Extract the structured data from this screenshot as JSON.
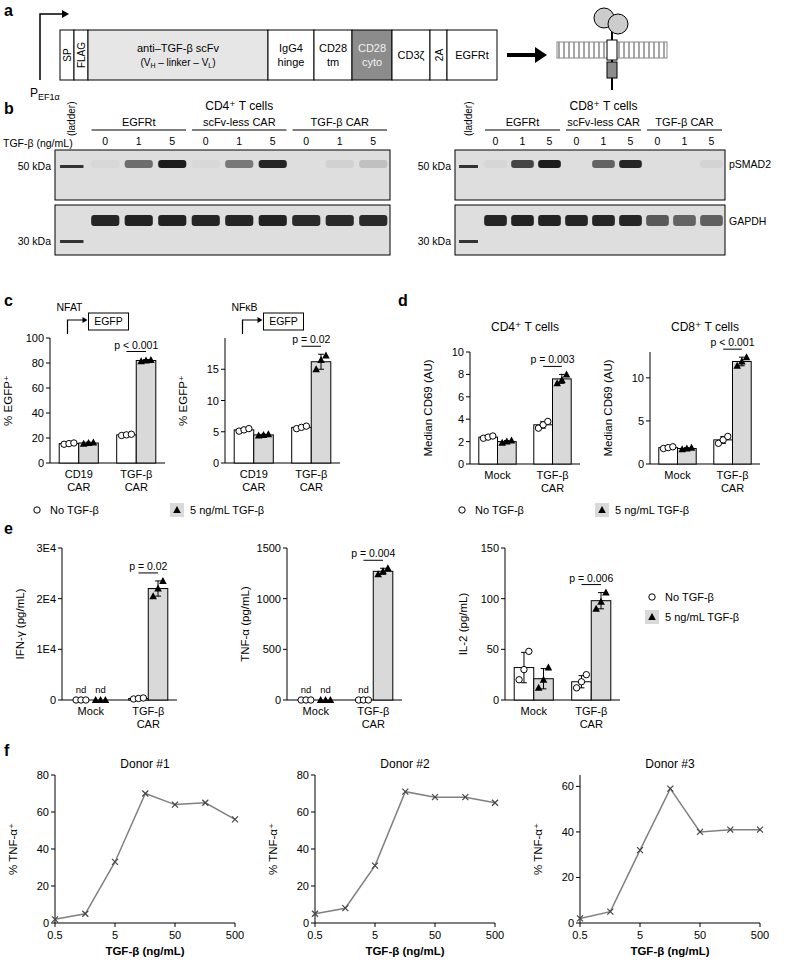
{
  "panel_labels": [
    "a",
    "b",
    "c",
    "d",
    "e",
    "f"
  ],
  "construct": {
    "promoter_parts": [
      "P",
      "EF1α"
    ],
    "segments": [
      {
        "lines": [
          "SP"
        ],
        "color": "#ffffff"
      },
      {
        "lines": [
          "FLAG"
        ],
        "color": "#ffffff"
      },
      {
        "lines": [
          "anti–TGF-β scFv"
        ],
        "sub_parts": [
          "(V",
          "H",
          " – linker – V",
          "L",
          ")"
        ],
        "color": "#e6e6e6"
      },
      {
        "lines": [
          "IgG4",
          "hinge"
        ],
        "color": "#ffffff"
      },
      {
        "lines": [
          "CD28",
          "tm"
        ],
        "color": "#ffffff"
      },
      {
        "lines": [
          "CD28",
          "cyto"
        ],
        "color": "#8c8c8c"
      },
      {
        "lines": [
          "CD3ζ"
        ],
        "color": "#ffffff"
      },
      {
        "lines": [
          "2A"
        ],
        "color": "#ffffff"
      },
      {
        "lines": [
          "EGFRt"
        ],
        "color": "#ffffff"
      }
    ]
  },
  "western_blot": {
    "dose_label": "TGF-β (ng/mL)",
    "ladder_label": "(ladder)",
    "markers": [
      "50 kDa",
      "30 kDa"
    ],
    "bands": [
      "pSMAD2",
      "GAPDH"
    ],
    "panels": [
      {
        "title": "CD4⁺ T cells",
        "groups": [
          {
            "name": "EGFRt",
            "doses": [
              0,
              1,
              5
            ],
            "psmad2": [
              0.03,
              0.55,
              0.95
            ],
            "gapdh": [
              0.9,
              0.92,
              0.92
            ]
          },
          {
            "name": "scFv-less CAR",
            "doses": [
              0,
              1,
              5
            ],
            "psmad2": [
              0.03,
              0.5,
              0.9
            ],
            "gapdh": [
              0.9,
              0.9,
              0.92
            ]
          },
          {
            "name": "TGF-β CAR",
            "doses": [
              0,
              1,
              5
            ],
            "psmad2": [
              0.0,
              0.06,
              0.15
            ],
            "gapdh": [
              0.88,
              0.88,
              0.88
            ]
          }
        ]
      },
      {
        "title": "CD8⁺ T cells",
        "groups": [
          {
            "name": "EGFRt",
            "doses": [
              0,
              1,
              5
            ],
            "psmad2": [
              0.04,
              0.75,
              0.95
            ],
            "gapdh": [
              0.9,
              0.92,
              0.92
            ]
          },
          {
            "name": "scFv-less CAR",
            "doses": [
              0,
              1,
              5
            ],
            "psmad2": [
              0.0,
              0.6,
              0.9
            ],
            "gapdh": [
              0.9,
              0.9,
              0.9
            ]
          },
          {
            "name": "TGF-β CAR",
            "doses": [
              0,
              1,
              5
            ],
            "psmad2": [
              0.0,
              0.0,
              0.05
            ],
            "gapdh": [
              0.65,
              0.6,
              0.62
            ]
          }
        ]
      }
    ]
  },
  "chart_data": [
    {
      "type": "bar",
      "reporter_promoter": "NFAT",
      "reporter_gene": "EGFP",
      "y_label": "% EGFP⁺",
      "categories": [
        "CD19 CAR",
        "TGF-β CAR"
      ],
      "series": [
        {
          "name": "No TGF-β",
          "color": "#ffffff",
          "marker": "circle",
          "values": [
            15.5,
            22.5
          ],
          "errors": [
            0.5,
            0.5
          ],
          "points": [
            [
              15,
              15.5,
              16
            ],
            [
              22,
              22.5,
              23
            ]
          ]
        },
        {
          "name": "5 ng/mL TGF-β",
          "color": "#d9d9d9",
          "marker": "triangle",
          "values": [
            16,
            82
          ],
          "errors": [
            0.7,
            0.8
          ],
          "points": [
            [
              15.5,
              16,
              16.5
            ],
            [
              81.5,
              82,
              82.5
            ]
          ]
        }
      ],
      "ylim": [
        0,
        100
      ],
      "yticks": [
        0,
        20,
        40,
        60,
        80,
        100
      ],
      "annotations": [
        {
          "text": "p < 0.001",
          "category": 1
        }
      ],
      "legend": "bottom"
    },
    {
      "type": "bar",
      "reporter_promoter": "NFκB",
      "reporter_gene": "EGFP",
      "y_label": "% EGFP⁺",
      "categories": [
        "CD19 CAR",
        "TGF-β CAR"
      ],
      "series": [
        {
          "name": "No TGF-β",
          "color": "#ffffff",
          "marker": "circle",
          "values": [
            5.3,
            5.7
          ],
          "errors": [
            0.2,
            0.2
          ],
          "points": [
            [
              5.1,
              5.3,
              5.5
            ],
            [
              5.5,
              5.7,
              5.9
            ]
          ]
        },
        {
          "name": "5 ng/mL TGF-β",
          "color": "#d9d9d9",
          "marker": "triangle",
          "values": [
            4.5,
            16.2
          ],
          "errors": [
            0.1,
            1.2
          ],
          "points": [
            [
              4.4,
              4.5,
              4.6
            ],
            [
              15,
              16.5,
              17.2
            ]
          ]
        }
      ],
      "ylim": [
        0,
        20
      ],
      "yticks": [
        0,
        5,
        10,
        15
      ],
      "annotations": [
        {
          "text": "p = 0.02",
          "category": 1
        }
      ]
    },
    {
      "type": "bar",
      "title": "CD4⁺ T cells",
      "y_label": "Median CD69 (AU)",
      "categories": [
        "Mock",
        "TGF-β CAR"
      ],
      "series": [
        {
          "name": "No TGF-β",
          "color": "#ffffff",
          "marker": "circle",
          "values": [
            2.4,
            3.5
          ],
          "errors": [
            0.1,
            0.3
          ],
          "points": [
            [
              2.3,
              2.4,
              2.5
            ],
            [
              3.2,
              3.5,
              3.8
            ]
          ]
        },
        {
          "name": "5 ng/mL TGF-β",
          "color": "#d9d9d9",
          "marker": "triangle",
          "values": [
            2.0,
            7.6
          ],
          "errors": [
            0.1,
            0.4
          ],
          "points": [
            [
              1.9,
              2.0,
              2.1
            ],
            [
              7.2,
              7.5,
              8.0
            ]
          ]
        }
      ],
      "ylim": [
        0,
        10
      ],
      "yticks": [
        0,
        2,
        4,
        6,
        8,
        10
      ],
      "annotations": [
        {
          "text": "p = 0.003",
          "category": 1
        }
      ],
      "legend": "bottom"
    },
    {
      "type": "bar",
      "title": "CD8⁺ T cells",
      "y_label": "Median CD69 (AU)",
      "categories": [
        "Mock",
        "TGF-β CAR"
      ],
      "series": [
        {
          "name": "No TGF-β",
          "color": "#ffffff",
          "marker": "circle",
          "values": [
            1.9,
            2.8
          ],
          "errors": [
            0.1,
            0.4
          ],
          "points": [
            [
              1.8,
              1.9,
              2.0
            ],
            [
              2.4,
              2.8,
              3.2
            ]
          ]
        },
        {
          "name": "5 ng/mL TGF-β",
          "color": "#d9d9d9",
          "marker": "triangle",
          "values": [
            1.8,
            11.9
          ],
          "errors": [
            0.1,
            0.5
          ],
          "points": [
            [
              1.7,
              1.8,
              1.9
            ],
            [
              11.4,
              11.9,
              12.4
            ]
          ]
        }
      ],
      "ylim": [
        0,
        13
      ],
      "yticks": [
        0,
        5,
        10
      ],
      "annotations": [
        {
          "text": "p < 0.001",
          "category": 1
        }
      ]
    },
    {
      "type": "bar",
      "y_label": "IFN-γ (pg/mL)",
      "categories": [
        "Mock",
        "TGF-β CAR"
      ],
      "series": [
        {
          "name": "No TGF-β",
          "color": "#ffffff",
          "marker": "circle",
          "values": [
            null,
            300
          ],
          "value_labels": [
            "nd",
            null
          ],
          "errors": [
            null,
            100
          ],
          "points": [
            [
              0,
              0,
              0
            ],
            [
              200,
              300,
              400
            ]
          ]
        },
        {
          "name": "5 ng/mL TGF-β",
          "color": "#d9d9d9",
          "marker": "triangle",
          "values": [
            null,
            22000
          ],
          "value_labels": [
            "nd",
            null
          ],
          "errors": [
            null,
            1500
          ],
          "points": [
            [
              0,
              0,
              0
            ],
            [
              20500,
              22000,
              23500
            ]
          ]
        }
      ],
      "ylim": [
        0,
        30000
      ],
      "yticks": [
        0,
        {
          "value": 10000,
          "label": "1E4"
        },
        {
          "value": 20000,
          "label": "2E4"
        },
        {
          "value": 30000,
          "label": "3E4"
        }
      ],
      "annotations": [
        {
          "text": "p = 0.02",
          "category": 1
        }
      ]
    },
    {
      "type": "bar",
      "y_label": "TNF-α (pg/mL)",
      "categories": [
        "Mock",
        "TGF-β CAR"
      ],
      "series": [
        {
          "name": "No TGF-β",
          "color": "#ffffff",
          "marker": "circle",
          "values": [
            null,
            null
          ],
          "value_labels": [
            "nd",
            "nd"
          ],
          "errors": [
            null,
            null
          ],
          "points": [
            [
              0,
              0,
              0
            ],
            [
              0,
              0,
              0
            ]
          ]
        },
        {
          "name": "5 ng/mL TGF-β",
          "color": "#d9d9d9",
          "marker": "triangle",
          "values": [
            null,
            1270
          ],
          "value_labels": [
            "nd",
            null
          ],
          "errors": [
            null,
            30
          ],
          "points": [
            [
              0,
              0,
              0
            ],
            [
              1240,
              1270,
              1300
            ]
          ]
        }
      ],
      "ylim": [
        0,
        1500
      ],
      "yticks": [
        0,
        500,
        1000,
        1500
      ],
      "annotations": [
        {
          "text": "p = 0.004",
          "category": 1
        }
      ]
    },
    {
      "type": "bar",
      "y_label": "IL-2 (pg/mL)",
      "categories": [
        "Mock",
        "TGF-β CAR"
      ],
      "series": [
        {
          "name": "No TGF-β",
          "color": "#ffffff",
          "marker": "circle",
          "values": [
            32,
            18
          ],
          "errors": [
            15,
            6
          ],
          "points": [
            [
              20,
              30,
              48
            ],
            [
              12,
              18,
              25
            ]
          ]
        },
        {
          "name": "5 ng/mL TGF-β",
          "color": "#d9d9d9",
          "marker": "triangle",
          "values": [
            21,
            98
          ],
          "errors": [
            10,
            8
          ],
          "points": [
            [
              12,
              20,
              32
            ],
            [
              90,
              97,
              106
            ]
          ]
        }
      ],
      "ylim": [
        0,
        150
      ],
      "yticks": [
        0,
        50,
        100,
        150
      ],
      "annotations": [
        {
          "text": "p = 0.006",
          "category": 1
        }
      ],
      "legend": "right"
    },
    {
      "type": "line",
      "title": "Donor #1",
      "x_label": "TGF-β (ng/mL)",
      "y_label": "% TNF-α⁺",
      "log": "x",
      "x": [
        0.5,
        1.6,
        5,
        16,
        50,
        160,
        500
      ],
      "xlim": [
        0.5,
        500
      ],
      "xticks": [
        0.5,
        5,
        50,
        500
      ],
      "series": [
        {
          "color": "#808080",
          "marker": "x",
          "values": [
            2,
            5,
            33,
            70,
            64,
            65,
            56
          ]
        }
      ],
      "ylim": [
        0,
        80
      ],
      "yticks": [
        0,
        20,
        40,
        60,
        80
      ]
    },
    {
      "type": "line",
      "title": "Donor #2",
      "x_label": "TGF-β (ng/mL)",
      "y_label": "% TNF-α⁺",
      "log": "x",
      "x": [
        0.5,
        1.6,
        5,
        16,
        50,
        160,
        500
      ],
      "xlim": [
        0.5,
        500
      ],
      "xticks": [
        0.5,
        5,
        50,
        500
      ],
      "series": [
        {
          "color": "#808080",
          "marker": "x",
          "values": [
            5,
            8,
            31,
            71,
            68,
            68,
            65
          ]
        }
      ],
      "ylim": [
        0,
        80
      ],
      "yticks": [
        0,
        20,
        40,
        60,
        80
      ]
    },
    {
      "type": "line",
      "title": "Donor #3",
      "x_label": "TGF-β (ng/mL)",
      "y_label": "% TNF-α⁺",
      "log": "x",
      "x": [
        0.5,
        1.6,
        5,
        16,
        50,
        160,
        500
      ],
      "xlim": [
        0.5,
        500
      ],
      "xticks": [
        0.5,
        5,
        50,
        500
      ],
      "series": [
        {
          "color": "#808080",
          "marker": "x",
          "values": [
            2,
            5,
            32,
            59,
            40,
            41,
            41
          ]
        }
      ],
      "ylim": [
        0,
        65
      ],
      "yticks": [
        0,
        20,
        40,
        60
      ]
    }
  ]
}
